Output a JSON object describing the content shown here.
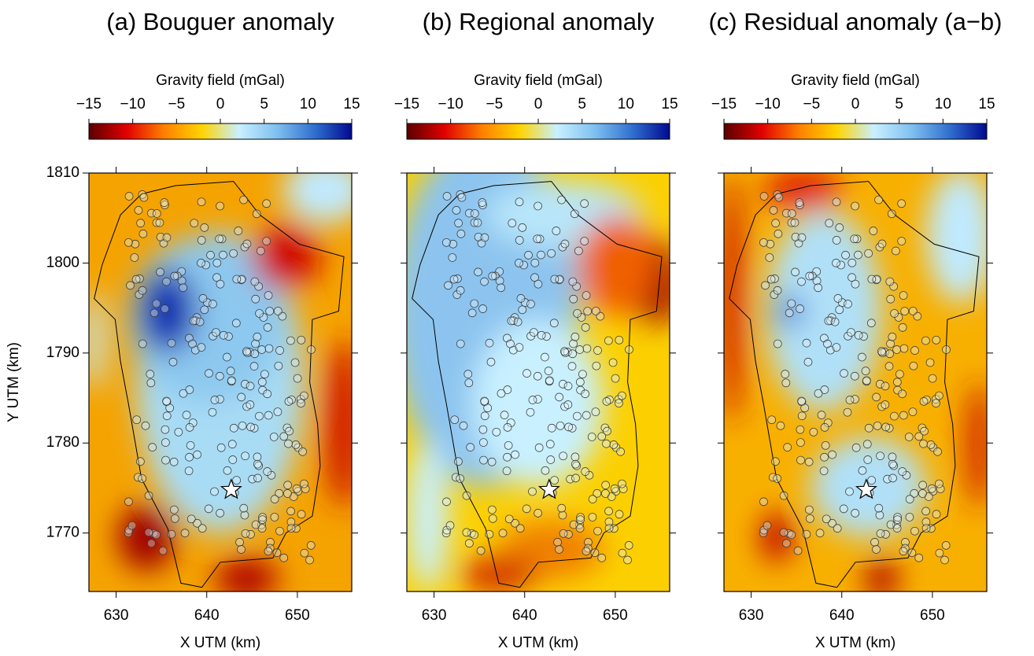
{
  "chart_data": [
    {
      "type": "map",
      "title": "(a) Bouguer anomaly",
      "colorbar_label": "Gravity field (mGal)",
      "clim": [
        -15,
        15
      ],
      "cticks": [
        {
          "value": -15,
          "label": "−15"
        },
        {
          "value": -10,
          "label": "−10"
        },
        {
          "value": -5,
          "label": "−5"
        },
        0,
        5,
        10,
        15
      ],
      "colormap": [
        "#5a0000",
        "#e00000",
        "#ff8000",
        "#ffd400",
        "#c8f0ff",
        "#80c0f0",
        "#3070d0",
        "#000a90"
      ],
      "xlim": [
        627,
        656
      ],
      "ylim": [
        1763.5,
        1810
      ],
      "xticks": [
        630,
        640,
        650
      ],
      "yticks": [
        1770,
        1780,
        1790,
        1800,
        1810
      ],
      "xlabel": "X UTM (km)",
      "ylabel": "Y UTM (km)",
      "marker": {
        "x": 642.7,
        "y": 1774.8
      }
    },
    {
      "type": "map",
      "title": "(b) Regional anomaly",
      "colorbar_label": "Gravity field (mGal)",
      "clim": [
        -15,
        15
      ],
      "cticks": [
        {
          "value": -15,
          "label": "−15"
        },
        {
          "value": -10,
          "label": "−10"
        },
        {
          "value": -5,
          "label": "−5"
        },
        0,
        5,
        10,
        15
      ],
      "colormap": [
        "#5a0000",
        "#e00000",
        "#ff8000",
        "#ffd400",
        "#c8f0ff",
        "#80c0f0",
        "#3070d0",
        "#000a90"
      ],
      "xlim": [
        627,
        656
      ],
      "ylim": [
        1763.5,
        1810
      ],
      "xticks": [
        630,
        640,
        650
      ],
      "xlabel": "X UTM (km)",
      "marker": {
        "x": 642.7,
        "y": 1774.8
      }
    },
    {
      "type": "map",
      "title": "(c) Residual anomaly (a−b)",
      "colorbar_label": "Gravity field (mGal)",
      "clim": [
        -15,
        15
      ],
      "cticks": [
        {
          "value": -15,
          "label": "−15"
        },
        {
          "value": -10,
          "label": "−10"
        },
        {
          "value": -5,
          "label": "−5"
        },
        0,
        5,
        10,
        15
      ],
      "colormap": [
        "#5a0000",
        "#e00000",
        "#ff8000",
        "#ffd400",
        "#c8f0ff",
        "#80c0f0",
        "#3070d0",
        "#000a90"
      ],
      "xlim": [
        627,
        656
      ],
      "ylim": [
        1763.5,
        1810
      ],
      "xticks": [
        630,
        640,
        650
      ],
      "xlabel": "X UTM (km)",
      "marker": {
        "x": 642.7,
        "y": 1774.8
      }
    }
  ]
}
